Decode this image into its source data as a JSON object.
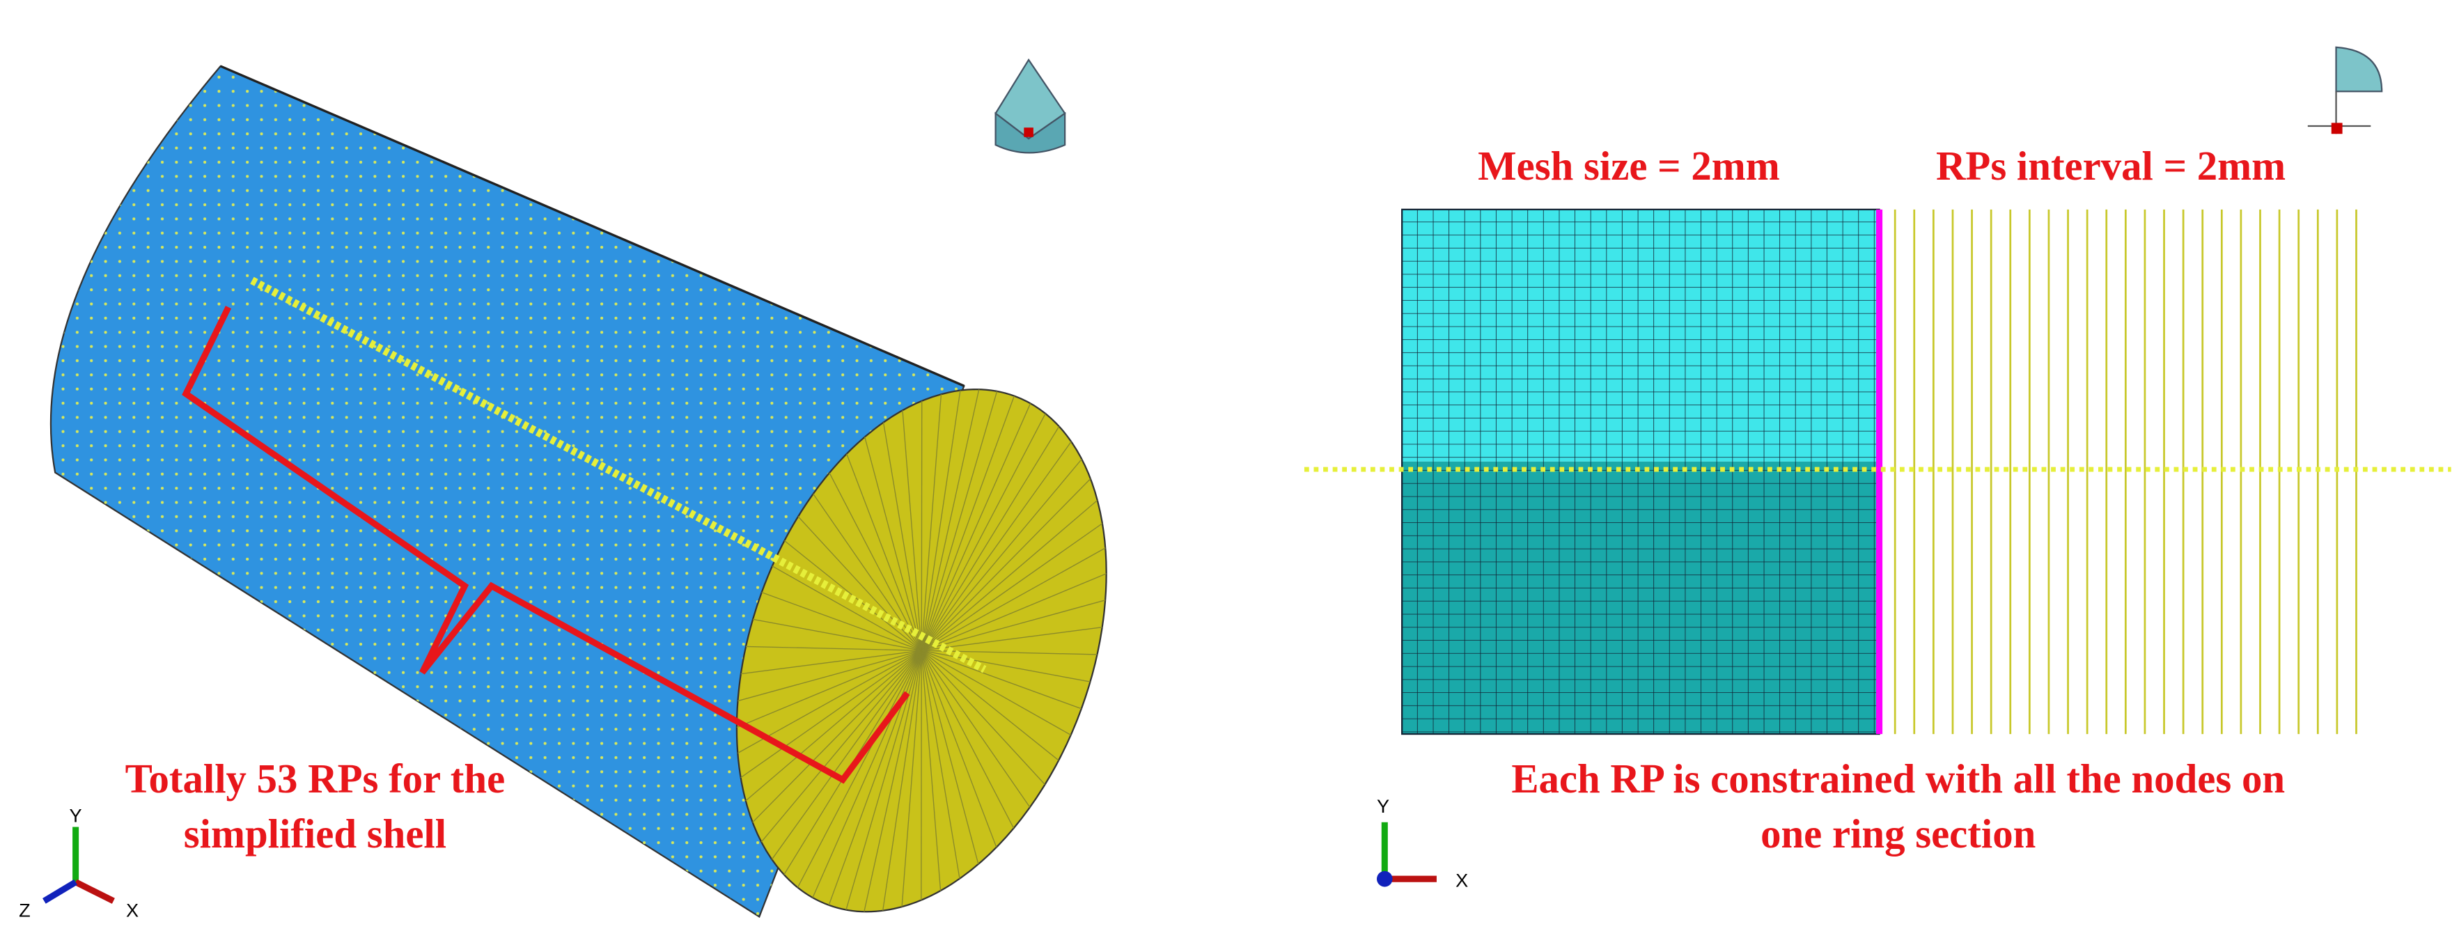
{
  "left_panel": {
    "caption": [
      "Totally 53 RPs for the",
      "simplified shell"
    ],
    "triad": {
      "y": "Y",
      "z": "Z",
      "x": "X"
    }
  },
  "right_panel": {
    "mesh_label": "Mesh size = 2mm",
    "interval_label": "RPs interval = 2mm",
    "caption": [
      "Each RP is constrained with all the nodes on",
      "one ring section"
    ],
    "triad": {
      "y": "Y",
      "x": "X"
    }
  }
}
